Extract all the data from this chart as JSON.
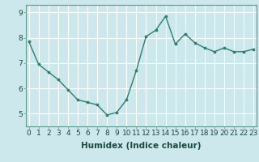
{
  "x": [
    0,
    1,
    2,
    3,
    4,
    5,
    6,
    7,
    8,
    9,
    10,
    11,
    12,
    13,
    14,
    15,
    16,
    17,
    18,
    19,
    20,
    21,
    22,
    23
  ],
  "y": [
    7.85,
    6.95,
    6.65,
    6.35,
    5.95,
    5.55,
    5.45,
    5.35,
    4.95,
    5.05,
    5.55,
    6.7,
    8.05,
    8.3,
    8.85,
    7.75,
    8.15,
    7.8,
    7.6,
    7.45,
    7.6,
    7.45,
    7.45,
    7.55
  ],
  "line_color": "#2e7d6e",
  "marker": "o",
  "marker_size": 2.2,
  "bg_color": "#cce8ec",
  "grid_color": "#ffffff",
  "xlabel": "Humidex (Indice chaleur)",
  "ylim": [
    4.5,
    9.3
  ],
  "xlim": [
    -0.3,
    23.3
  ],
  "yticks": [
    5,
    6,
    7,
    8,
    9
  ],
  "xticks": [
    0,
    1,
    2,
    3,
    4,
    5,
    6,
    7,
    8,
    9,
    10,
    11,
    12,
    13,
    14,
    15,
    16,
    17,
    18,
    19,
    20,
    21,
    22,
    23
  ],
  "xlabel_fontsize": 7.5,
  "tick_fontsize": 6.5,
  "line_width": 1.0,
  "spine_color": "#2e7d6e",
  "axis_border_color": "#5a9a8a"
}
